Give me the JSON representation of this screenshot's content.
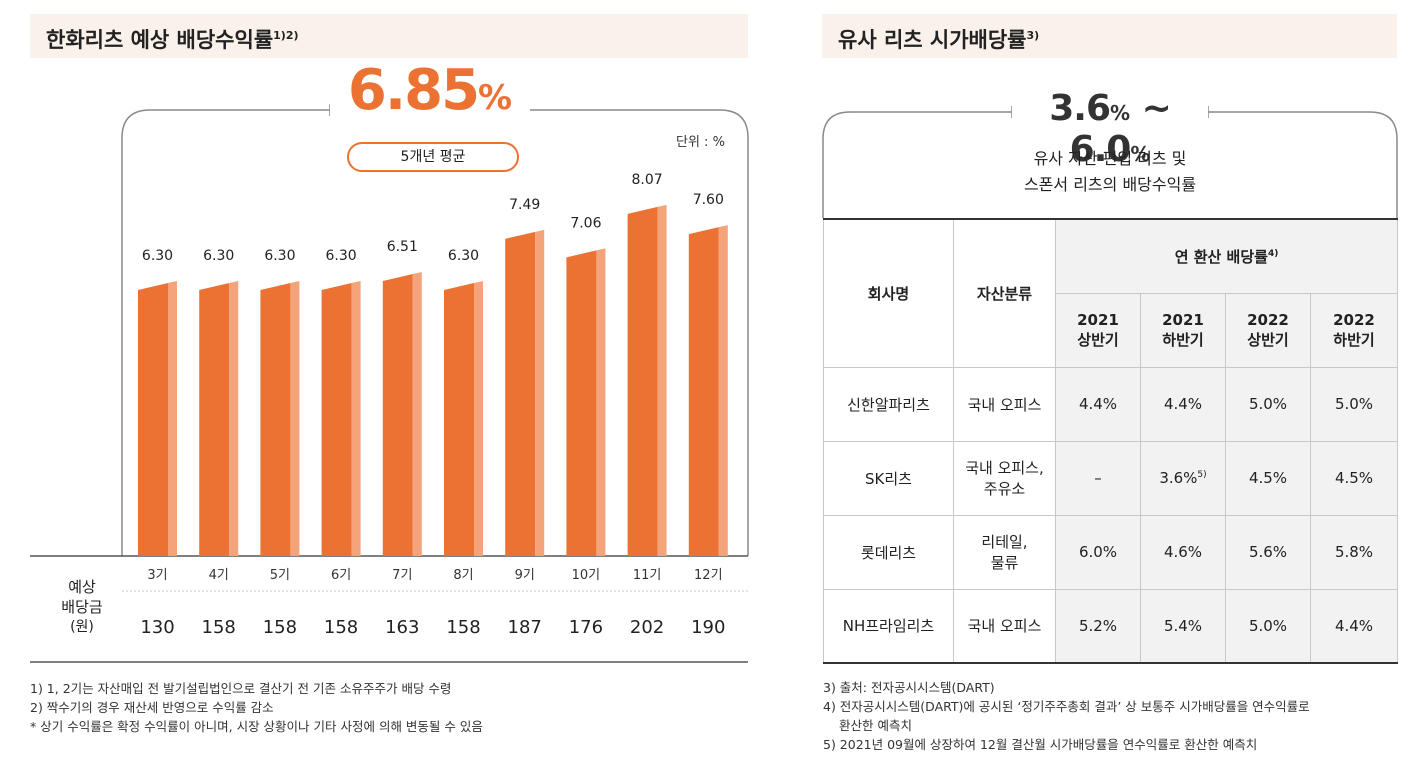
{
  "left_panel": {
    "title": "한화리츠 예상 배당수익률",
    "title_sup": "1)2)",
    "headline_value": "6.85",
    "headline_unit": "%",
    "headline_caption": "5개년 평균",
    "unit_label": "단위 : %",
    "dividend_row_label_1": "예상",
    "dividend_row_label_2": "배당금",
    "dividend_row_label_3": "(원)",
    "footnotes": [
      "1) 1, 2기는 자산매입 전 발기설립법인으로 결산기 전 기존 소유주주가 배당 수령",
      "2) 짝수기의 경우 재산세 반영으로 수익률 감소",
      "* 상기 수익률은 확정 수익률이 아니며, 시장 상황이나 기타 사정에 의해 변동될 수 있음"
    ],
    "bar_color": "#ec7234",
    "bar_side_color": "#f4a37a"
  },
  "chart_data": {
    "type": "bar",
    "categories": [
      "3기",
      "4기",
      "5기",
      "6기",
      "7기",
      "8기",
      "9기",
      "10기",
      "11기",
      "12기"
    ],
    "values": [
      6.3,
      6.3,
      6.3,
      6.3,
      6.51,
      6.3,
      7.49,
      7.06,
      8.07,
      7.6
    ],
    "value_labels": [
      "6.30",
      "6.30",
      "6.30",
      "6.30",
      "6.51",
      "6.30",
      "7.49",
      "7.06",
      "8.07",
      "7.60"
    ],
    "dividends": [
      "130",
      "158",
      "158",
      "158",
      "163",
      "158",
      "187",
      "176",
      "202",
      "190"
    ],
    "title": "한화리츠 예상 배당수익률",
    "ylabel": "",
    "unit": "단위 : %"
  },
  "right_panel": {
    "title": "유사 리츠 시가배당률",
    "title_sup": "3)",
    "range_low": "3.6",
    "range_high": "6.0",
    "range_unit": "%",
    "range_sep": "~",
    "subtitle_line1": "유사 자산 편입 리츠 및",
    "subtitle_line2": "스폰서 리츠의 배당수익률",
    "table": {
      "col_company": "회사명",
      "col_asset": "자산분류",
      "col_group": "연 환산 배당률",
      "col_group_sup": "4)",
      "periods": [
        {
          "year": "2021",
          "half": "상반기"
        },
        {
          "year": "2021",
          "half": "하반기"
        },
        {
          "year": "2022",
          "half": "상반기"
        },
        {
          "year": "2022",
          "half": "하반기"
        }
      ],
      "rows": [
        {
          "company": "신한알파리츠",
          "asset_1": "국내 오피스",
          "asset_2": "",
          "v1": "4.4%",
          "v2": "4.4%",
          "v2_sup": "",
          "v3": "5.0%",
          "v4": "5.0%"
        },
        {
          "company": "SK리츠",
          "asset_1": "국내 오피스,",
          "asset_2": "주유소",
          "v1": "–",
          "v2": "3.6%",
          "v2_sup": "5)",
          "v3": "4.5%",
          "v4": "4.5%"
        },
        {
          "company": "롯데리츠",
          "asset_1": "리테일,",
          "asset_2": "물류",
          "v1": "6.0%",
          "v2": "4.6%",
          "v2_sup": "",
          "v3": "5.6%",
          "v4": "5.8%"
        },
        {
          "company": "NH프라임리츠",
          "asset_1": "국내 오피스",
          "asset_2": "",
          "v1": "5.2%",
          "v2": "5.4%",
          "v2_sup": "",
          "v3": "5.0%",
          "v4": "4.4%"
        }
      ]
    },
    "footnotes": [
      "3) 출처: 전자공시시스템(DART)",
      "4) 전자공시시스템(DART)에 공시된 ‘정기주주총회 결과’ 상 보통주 시가배당률을 연수익률로",
      "환산한 예측치",
      "5) 2021년 09월에 상장하여 12월 결산월 시가배당률을 연수익률로 환산한 예측치"
    ]
  }
}
